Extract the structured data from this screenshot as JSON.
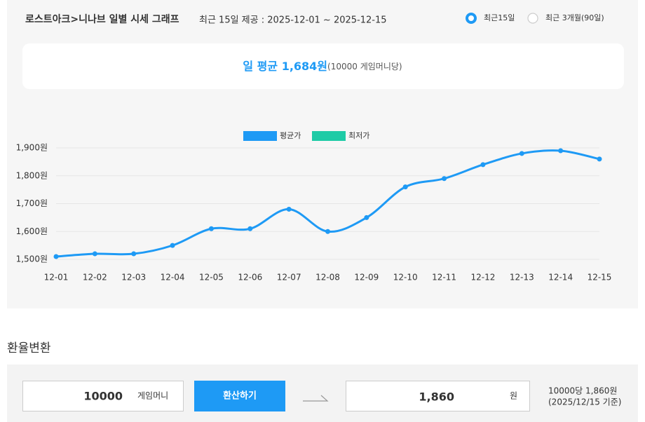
{
  "header": {
    "title": "로스트아크>니나브 일별 시세 그래프",
    "subtitle": "최근 15일 제공 : 2025-12-01 ~ 2025-12-15",
    "options": [
      "최근15일",
      "최근 3개월(90일)"
    ]
  },
  "summary": {
    "main": "일 평균 1,684원",
    "note": "(10000 게임머니당)"
  },
  "chart_data": {
    "type": "line",
    "categories": [
      "12-01",
      "12-02",
      "12-03",
      "12-04",
      "12-05",
      "12-06",
      "12-07",
      "12-08",
      "12-09",
      "12-10",
      "12-11",
      "12-12",
      "12-13",
      "12-14",
      "12-15"
    ],
    "series": [
      {
        "name": "평균가",
        "color": "#1e9af5",
        "values": [
          1510,
          1520,
          1520,
          1550,
          1610,
          1610,
          1680,
          1600,
          1650,
          1760,
          1790,
          1840,
          1880,
          1890,
          1860
        ]
      },
      {
        "name": "최저가",
        "color": "#1ecba6",
        "values": [
          null,
          null,
          null,
          null,
          null,
          null,
          null,
          null,
          null,
          null,
          null,
          null,
          null,
          null,
          null
        ]
      }
    ],
    "ylim": [
      1500,
      1900
    ],
    "yticks": [
      {
        "value": 1500,
        "label": "1,500원"
      },
      {
        "value": 1600,
        "label": "1,600원"
      },
      {
        "value": 1700,
        "label": "1,700원"
      },
      {
        "value": 1800,
        "label": "1,800원"
      },
      {
        "value": 1900,
        "label": "1,900원"
      }
    ],
    "grid": true,
    "legend": "top"
  },
  "converter": {
    "title": "환율변환",
    "amount": "10000",
    "unit": "게임머니",
    "button": "환산하기",
    "result": "1,860",
    "result_unit": "원",
    "note": [
      "10000당 1,860원",
      "(2025/12/15 기준)"
    ]
  }
}
